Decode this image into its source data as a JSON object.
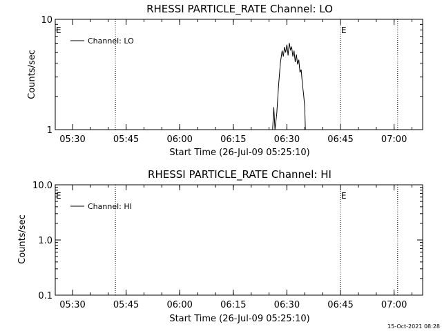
{
  "footer": {
    "timestamp": "15-Oct-2021 08:28"
  },
  "chart_data": [
    {
      "type": "line",
      "title": "RHESSI PARTICLE_RATE Channel: LO",
      "xlabel": "Start Time (26-Jul-09 05:25:10)",
      "ylabel": "Counts/sec",
      "y_scale": "log",
      "ylim": [
        1,
        10
      ],
      "xlim": [
        "05:25:10",
        "07:08:00"
      ],
      "x_tick_labels": [
        "05:30",
        "05:45",
        "06:00",
        "06:15",
        "06:30",
        "06:45",
        "07:00"
      ],
      "y_tick_labels": [
        {
          "value": 1,
          "label": "1"
        },
        {
          "value": 10,
          "label": "10"
        }
      ],
      "legend": {
        "position": "top-left",
        "entries": [
          "Channel: LO"
        ]
      },
      "grid": false,
      "markers": [
        {
          "label": "E",
          "time": "05:25:10"
        },
        {
          "label": "E",
          "time": "06:45:00"
        }
      ],
      "vertical_lines": [
        "05:42:00",
        "06:45:00",
        "07:01:00"
      ],
      "series": [
        {
          "name": "Channel: LO",
          "color": "#000000",
          "points": [
            [
              "06:26:00",
              0.9
            ],
            [
              "06:26:20",
              1.6
            ],
            [
              "06:26:40",
              0.9
            ],
            [
              "06:27:10",
              1.4
            ],
            [
              "06:27:40",
              2.5
            ],
            [
              "06:28:10",
              4.0
            ],
            [
              "06:28:40",
              5.2
            ],
            [
              "06:29:00",
              4.6
            ],
            [
              "06:29:20",
              5.6
            ],
            [
              "06:29:40",
              5.0
            ],
            [
              "06:30:00",
              5.9
            ],
            [
              "06:30:20",
              4.7
            ],
            [
              "06:30:40",
              6.1
            ],
            [
              "06:31:00",
              5.3
            ],
            [
              "06:31:20",
              5.6
            ],
            [
              "06:31:40",
              4.6
            ],
            [
              "06:32:00",
              5.2
            ],
            [
              "06:32:20",
              4.1
            ],
            [
              "06:32:40",
              4.8
            ],
            [
              "06:33:00",
              3.9
            ],
            [
              "06:33:20",
              4.3
            ],
            [
              "06:33:40",
              3.3
            ],
            [
              "06:34:00",
              3.5
            ],
            [
              "06:34:20",
              2.6
            ],
            [
              "06:34:40",
              2.1
            ],
            [
              "06:35:00",
              1.6
            ],
            [
              "06:35:10",
              0.9
            ]
          ]
        }
      ]
    },
    {
      "type": "line",
      "title": "RHESSI PARTICLE_RATE Channel: HI",
      "xlabel": "Start Time (26-Jul-09 05:25:10)",
      "ylabel": "Counts/sec",
      "y_scale": "log",
      "ylim": [
        0.1,
        10
      ],
      "xlim": [
        "05:25:10",
        "07:08:00"
      ],
      "x_tick_labels": [
        "05:30",
        "05:45",
        "06:00",
        "06:15",
        "06:30",
        "06:45",
        "07:00"
      ],
      "y_tick_labels": [
        {
          "value": 0.1,
          "label": "0.1"
        },
        {
          "value": 1,
          "label": "1.0"
        },
        {
          "value": 10,
          "label": "10.0"
        }
      ],
      "legend": {
        "position": "top-left",
        "entries": [
          "Channel: HI"
        ]
      },
      "grid": false,
      "markers": [
        {
          "label": "E",
          "time": "05:25:10"
        },
        {
          "label": "E",
          "time": "06:45:00"
        }
      ],
      "vertical_lines": [
        "05:42:00",
        "06:45:00",
        "07:01:00"
      ],
      "series": [
        {
          "name": "Channel: HI",
          "color": "#000000",
          "points": []
        }
      ]
    }
  ]
}
